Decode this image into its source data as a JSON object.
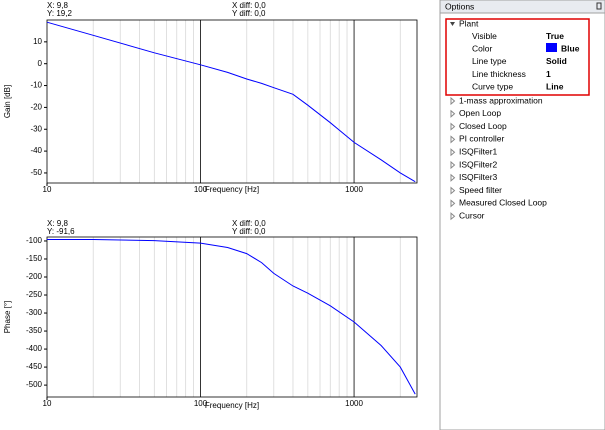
{
  "chart_data": [
    {
      "type": "line",
      "xscale": "log",
      "ylabel": "Gain [dB]",
      "xlabel": "Frequency [Hz]",
      "annotations": [
        "X: 9,8",
        "Y: 19,2",
        "X diff: 0,0",
        "Y diff: 0,0"
      ],
      "x": [
        10,
        20,
        50,
        100,
        150,
        200,
        250,
        300,
        400,
        500,
        700,
        1000,
        1500,
        2000,
        2500
      ],
      "series": [
        {
          "color": "#0000ff",
          "values": [
            19,
            13,
            5,
            -0.5,
            -4,
            -7,
            -9,
            -11,
            -14,
            -19,
            -27,
            -36,
            -44,
            -50,
            -54
          ]
        }
      ],
      "xlim": [
        10,
        2570
      ],
      "xticks": [
        10,
        100,
        1000
      ],
      "xminor": [
        20,
        30,
        40,
        50,
        60,
        70,
        80,
        90,
        200,
        300,
        400,
        500,
        600,
        700,
        800,
        900,
        2000
      ],
      "ylim": [
        -54.6,
        20
      ],
      "yticks": [
        10,
        0,
        -10,
        -20,
        -30,
        -40,
        -50
      ],
      "grid": true
    },
    {
      "type": "line",
      "xscale": "log",
      "ylabel": "Phase [°]",
      "xlabel": "Frequency [Hz]",
      "annotations": [
        "X: 9,8",
        "Y: -91,6",
        "X diff: 0,0",
        "Y diff: 0,0"
      ],
      "x": [
        10,
        20,
        50,
        100,
        150,
        200,
        250,
        300,
        400,
        500,
        700,
        1000,
        1500,
        2000,
        2500
      ],
      "series": [
        {
          "color": "#0000ff",
          "values": [
            -96,
            -96,
            -99,
            -106,
            -118,
            -135,
            -160,
            -190,
            -225,
            -245,
            -280,
            -325,
            -390,
            -450,
            -525
          ]
        }
      ],
      "xlim": [
        10,
        2570
      ],
      "xticks": [
        10,
        100,
        1000
      ],
      "xminor": [
        20,
        30,
        40,
        50,
        60,
        70,
        80,
        90,
        200,
        300,
        400,
        500,
        600,
        700,
        800,
        900,
        2000
      ],
      "ylim": [
        -533,
        -89
      ],
      "yticks": [
        -100,
        -150,
        -200,
        -250,
        -300,
        -350,
        -400,
        -450,
        -500
      ],
      "grid": true
    }
  ],
  "options": {
    "title": "Options",
    "group": {
      "label": "Plant",
      "properties": [
        {
          "name": "Visible",
          "value": "True"
        },
        {
          "name": "Color",
          "value": "Blue"
        },
        {
          "name": "Line type",
          "value": "Solid"
        },
        {
          "name": "Line thickness",
          "value": "1"
        },
        {
          "name": "Curve type",
          "value": "Line"
        }
      ]
    },
    "items": [
      "1-mass approximation",
      "Open Loop",
      "Closed Loop",
      "PI controller",
      "ISQFilter1",
      "ISQFilter2",
      "ISQFilter3",
      "Speed filter",
      "Measured Closed Loop",
      "Cursor"
    ]
  }
}
